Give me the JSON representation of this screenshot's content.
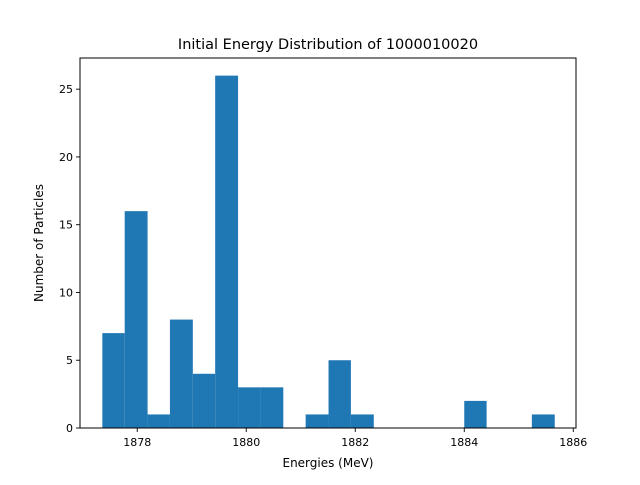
{
  "chart_data": {
    "type": "bar",
    "title": "Initial Energy Distribution of 1000010020",
    "xlabel": "Energies (MeV)",
    "ylabel": "Number of Particles",
    "xlim": [
      1876.95,
      1886.05
    ],
    "ylim": [
      0,
      27.3
    ],
    "xticks": [
      1878,
      1880,
      1882,
      1884,
      1886
    ],
    "yticks": [
      0,
      5,
      10,
      15,
      20,
      25
    ],
    "grid": false,
    "bar_color": "#1f77b4",
    "bins": [
      {
        "x0": 1877.36,
        "x1": 1877.77,
        "value": 7
      },
      {
        "x0": 1877.77,
        "x1": 1878.19,
        "value": 16
      },
      {
        "x0": 1878.19,
        "x1": 1878.6,
        "value": 1
      },
      {
        "x0": 1878.6,
        "x1": 1879.02,
        "value": 8
      },
      {
        "x0": 1879.02,
        "x1": 1879.43,
        "value": 4
      },
      {
        "x0": 1879.43,
        "x1": 1879.85,
        "value": 26
      },
      {
        "x0": 1879.85,
        "x1": 1880.26,
        "value": 3
      },
      {
        "x0": 1880.26,
        "x1": 1880.68,
        "value": 3
      },
      {
        "x0": 1880.68,
        "x1": 1881.09,
        "value": 0
      },
      {
        "x0": 1881.09,
        "x1": 1881.51,
        "value": 1
      },
      {
        "x0": 1881.51,
        "x1": 1881.92,
        "value": 5
      },
      {
        "x0": 1881.92,
        "x1": 1882.34,
        "value": 1
      },
      {
        "x0": 1882.34,
        "x1": 1882.75,
        "value": 0
      },
      {
        "x0": 1882.75,
        "x1": 1883.17,
        "value": 0
      },
      {
        "x0": 1883.17,
        "x1": 1883.58,
        "value": 0
      },
      {
        "x0": 1883.58,
        "x1": 1884.0,
        "value": 0
      },
      {
        "x0": 1884.0,
        "x1": 1884.41,
        "value": 2
      },
      {
        "x0": 1884.41,
        "x1": 1884.83,
        "value": 0
      },
      {
        "x0": 1884.83,
        "x1": 1885.24,
        "value": 0
      },
      {
        "x0": 1885.24,
        "x1": 1885.66,
        "value": 1
      }
    ]
  }
}
